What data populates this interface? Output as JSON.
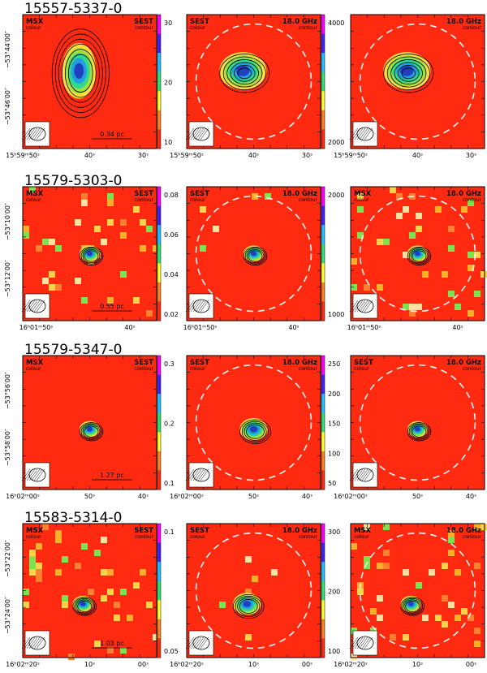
{
  "colors": {
    "background": "#ff2a10",
    "frame": "#000000",
    "dashed": "#f6f6f6",
    "contour": "#000000"
  },
  "rows": [
    {
      "source": "15557-5337-0",
      "dec_labels": [
        "−53°44′00″",
        "−53°46′00″"
      ],
      "ra_labels": [
        "15ʰ59ᵐ50ˢ",
        "40ˢ",
        "30ˢ"
      ],
      "scale_bar": "0.34 pc",
      "panels": [
        {
          "left": "MSX",
          "left_sub": "colour",
          "right": "SEST",
          "right_sub": "contour",
          "colorbar": [
            "30",
            "20",
            "10"
          ]
        },
        {
          "left": "SEST",
          "left_sub": "colour",
          "right": "18.0 GHz",
          "right_sub": "contour",
          "colorbar": [
            "4000",
            "2000"
          ]
        },
        {
          "left": "",
          "left_sub": "",
          "right": "18.0 GHz",
          "right_sub": "contour",
          "colorbar": []
        }
      ]
    },
    {
      "source": "15579-5303-0",
      "dec_labels": [
        "−53°10′00″",
        "−53°12′00″"
      ],
      "ra_labels": [
        "16ʰ01ᵐ50ˢ",
        "40ˢ"
      ],
      "scale_bar": "0.55 pc",
      "panels": [
        {
          "left": "MSX",
          "left_sub": "colour",
          "right": "SEST",
          "right_sub": "contour",
          "colorbar": [
            "0.08",
            "0.06",
            "0.04",
            "0.02"
          ]
        },
        {
          "left": "SEST",
          "left_sub": "colour",
          "right": "18.0 GHz",
          "right_sub": "contour",
          "colorbar": [
            "2000",
            "1000"
          ]
        },
        {
          "left": "MSX",
          "left_sub": "colour",
          "right": "18.0 GHz",
          "right_sub": "contour",
          "colorbar": []
        }
      ]
    },
    {
      "source": "15579-5347-0",
      "dec_labels": [
        "−53°56′00″",
        "−53°58′00″"
      ],
      "ra_labels": [
        "16ʰ02ᵐ00ˢ",
        "50ˢ",
        "40ˢ"
      ],
      "scale_bar": "1.27 pc",
      "panels": [
        {
          "left": "MSX",
          "left_sub": "colour",
          "right": "SEST",
          "right_sub": "contour",
          "colorbar": [
            "0.3",
            "0.2",
            "0.1"
          ]
        },
        {
          "left": "SEST",
          "left_sub": "colour",
          "right": "18.0 GHz",
          "right_sub": "contour",
          "colorbar": [
            "250",
            "200",
            "150",
            "100",
            "50"
          ]
        },
        {
          "left": "SEST",
          "left_sub": "colour",
          "right": "18.0 GHz",
          "right_sub": "contour",
          "colorbar": []
        }
      ]
    },
    {
      "source": "15583-5314-0",
      "dec_labels": [
        "−53°22′00″",
        "−53°24′00″"
      ],
      "ra_labels": [
        "16ʰ02ᵐ20ˢ",
        "10ˢ",
        "00ˢ"
      ],
      "scale_bar": "1.03 pc",
      "panels": [
        {
          "left": "MSX",
          "left_sub": "colour",
          "right": "SEST",
          "right_sub": "contour",
          "colorbar": [
            "0.1",
            "0.05"
          ]
        },
        {
          "left": "SEST",
          "left_sub": "colour",
          "right": "18.0 GHz",
          "right_sub": "contour",
          "colorbar": [
            "300",
            "200",
            "100"
          ]
        },
        {
          "left": "MSX",
          "left_sub": "colour",
          "right": "18.0 GHz",
          "right_sub": "contour",
          "colorbar": []
        }
      ]
    }
  ],
  "chart_data": {
    "type": "heatmap",
    "title": "",
    "grid": false,
    "colormap": "rainbow (red low → magenta high)",
    "sources": [
      "15557-5337-0",
      "15579-5303-0",
      "15579-5347-0",
      "15583-5314-0"
    ],
    "colorbar_ticks": {
      "15557-5337-0": {
        "msx": [
          10,
          20,
          30
        ],
        "sest": [
          2000,
          4000
        ]
      },
      "15579-5303-0": {
        "msx": [
          0.02,
          0.04,
          0.06,
          0.08
        ],
        "sest": [
          1000,
          2000
        ]
      },
      "15579-5347-0": {
        "msx": [
          0.1,
          0.2,
          0.3
        ],
        "sest": [
          50,
          100,
          150,
          200,
          250
        ]
      },
      "15583-5314-0": {
        "msx": [
          0.05,
          0.1
        ],
        "sest": [
          100,
          200,
          300
        ]
      }
    },
    "scale_bars_pc": [
      0.34,
      0.55,
      1.27,
      1.03
    ],
    "beam_frequency": "18.0 GHz"
  }
}
